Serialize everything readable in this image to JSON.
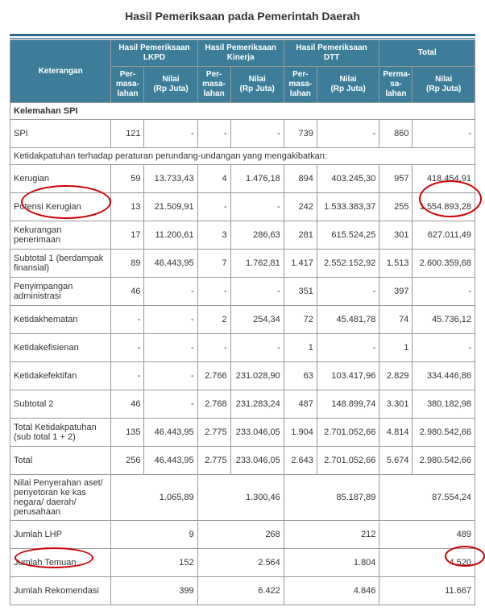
{
  "title": "Hasil Pemeriksaan pada Pemerintah Daerah",
  "header": {
    "keterangan": "Keterangan",
    "groups": [
      "Hasil Pemeriksaan LKPD",
      "Hasil Pemeriksaan Kinerja",
      "Hasil Pemeriksaan DTT",
      "Total"
    ],
    "perm": "Per-\nmasa-\nlahan",
    "perm_total": "Perma-\nsa-lahan",
    "nilai": "Nilai\n(Rp Juta)"
  },
  "section1": "Kelemahan SPI",
  "section2": "Ketidakpatuhan terhadap peraturan perundang-undangan yang mengakibatkan:",
  "rows": {
    "spi": {
      "label": "SPI",
      "p1": "121",
      "v1": "-",
      "p2": "-",
      "v2": "-",
      "p3": "739",
      "v3": "-",
      "p4": "860",
      "v4": "-"
    },
    "kerugian": {
      "label": "Kerugian",
      "p1": "59",
      "v1": "13.733,43",
      "p2": "4",
      "v2": "1.476,18",
      "p3": "894",
      "v3": "403.245,30",
      "p4": "957",
      "v4": "418.454,91"
    },
    "potensi": {
      "label": "Potensi Kerugian",
      "p1": "13",
      "v1": "21.509,91",
      "p2": "-",
      "v2": "-",
      "p3": "242",
      "v3": "1.533.383,37",
      "p4": "255",
      "v4": "1.554.893,28"
    },
    "kekurangan": {
      "label": "Kekurangan penerimaan",
      "p1": "17",
      "v1": "11.200,61",
      "p2": "3",
      "v2": "286,63",
      "p3": "281",
      "v3": "615.524,25",
      "p4": "301",
      "v4": "627.011,49"
    },
    "sub1": {
      "label": "Subtotal 1 (berdampak finansial)",
      "p1": "89",
      "v1": "46.443,95",
      "p2": "7",
      "v2": "1.762,81",
      "p3": "1.417",
      "v3": "2.552.152,92",
      "p4": "1.513",
      "v4": "2.600.359,68"
    },
    "penyimpangan": {
      "label": "Penyimpangan administrasi",
      "p1": "46",
      "v1": "-",
      "p2": "-",
      "v2": "-",
      "p3": "351",
      "v3": "-",
      "p4": "397",
      "v4": "-"
    },
    "ketidakhematan": {
      "label": "Ketidakhematan",
      "p1": "-",
      "v1": "-",
      "p2": "2",
      "v2": "254,34",
      "p3": "72",
      "v3": "45.481,78",
      "p4": "74",
      "v4": "45.736,12"
    },
    "ketidakefisienan": {
      "label": "Ketidakefisienan",
      "p1": "-",
      "v1": "-",
      "p2": "-",
      "v2": "-",
      "p3": "1",
      "v3": "-",
      "p4": "1",
      "v4": "-"
    },
    "ketidakefektifan": {
      "label": "Ketidakefektifan",
      "p1": "-",
      "v1": "-",
      "p2": "2.766",
      "v2": "231.028,90",
      "p3": "63",
      "v3": "103.417,96",
      "p4": "2.829",
      "v4": "334.446,86"
    },
    "sub2": {
      "label": "Subtotal 2",
      "p1": "46",
      "v1": "-",
      "p2": "2.768",
      "v2": "231.283,24",
      "p3": "487",
      "v3": "148.899,74",
      "p4": "3.301",
      "v4": "380.182,98"
    },
    "totketidak": {
      "label": "Total Ketidakpatuhan (sub total 1 + 2)",
      "p1": "135",
      "v1": "46.443,95",
      "p2": "2.775",
      "v2": "233.046,05",
      "p3": "1.904",
      "v3": "2.701.052,66",
      "p4": "4.814",
      "v4": "2.980.542,66"
    },
    "total": {
      "label": "Total",
      "p1": "256",
      "v1": "46.443,95",
      "p2": "2.775",
      "v2": "233.046,05",
      "p3": "2.643",
      "v3": "2.701.052,66",
      "p4": "5.674",
      "v4": "2.980.542,66"
    }
  },
  "footer": {
    "nilai_penyerahan": {
      "label": "Nilai Penyerahan aset/ penyetoran ke kas negara/ daerah/ perusahaan",
      "v1": "1.065,89",
      "v2": "1.300,46",
      "v3": "85.187,89",
      "v4": "87.554,24"
    },
    "jumlah_lhp": {
      "label": "Jumlah LHP",
      "v1": "9",
      "v2": "268",
      "v3": "212",
      "v4": "489"
    },
    "jumlah_temuan": {
      "label": "Jumlah Temuan",
      "v1": "152",
      "v2": "2.564",
      "v3": "1.804",
      "v4": "4.520"
    },
    "jumlah_rekomendasi": {
      "label": "Jumlah Rekomendasi",
      "v1": "399",
      "v2": "6.422",
      "v3": "4.846",
      "v4": "11.667"
    }
  },
  "annotations": {
    "circle_color": "#cc0000"
  }
}
